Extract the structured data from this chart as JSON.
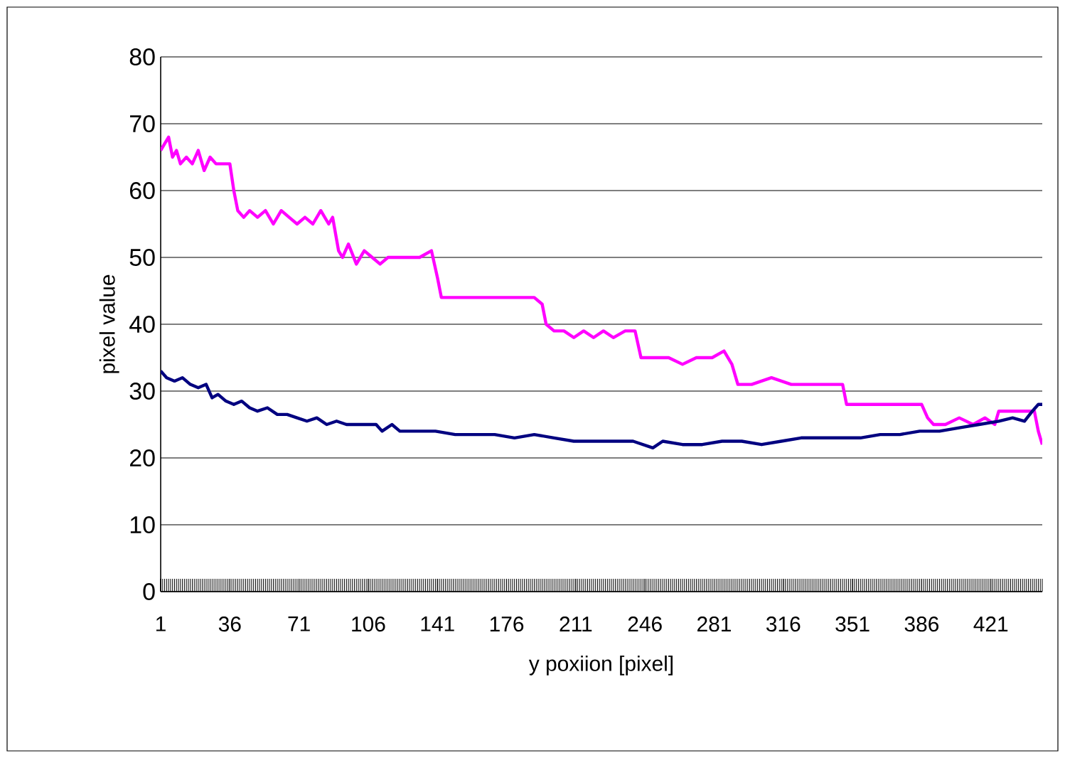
{
  "chart_data": {
    "type": "line",
    "xlabel": "y poxiion [pixel]",
    "ylabel": "pixel value",
    "xlim": [
      1,
      447
    ],
    "xticks": [
      1,
      36,
      71,
      106,
      141,
      176,
      211,
      246,
      281,
      316,
      351,
      386,
      421
    ],
    "ylim": [
      0,
      80
    ],
    "yticks": [
      0,
      10,
      20,
      30,
      40,
      50,
      60,
      70,
      80
    ],
    "grid": "y",
    "marker": "none",
    "line_style": "solid",
    "series": [
      {
        "color": "#ff00ff",
        "x": [
          1,
          3,
          5,
          7,
          9,
          11,
          14,
          17,
          20,
          23,
          26,
          29,
          32,
          36,
          38,
          40,
          43,
          46,
          50,
          54,
          58,
          62,
          66,
          70,
          74,
          78,
          82,
          86,
          88,
          91,
          93,
          96,
          100,
          104,
          108,
          112,
          116,
          120,
          126,
          132,
          138,
          141,
          143,
          150,
          160,
          170,
          180,
          190,
          194,
          196,
          200,
          205,
          210,
          215,
          220,
          225,
          230,
          236,
          241,
          244,
          250,
          258,
          265,
          272,
          280,
          286,
          290,
          293,
          300,
          310,
          320,
          330,
          340,
          346,
          348,
          360,
          370,
          380,
          386,
          389,
          392,
          398,
          405,
          412,
          418,
          423,
          425,
          432,
          440,
          443,
          445,
          447
        ],
        "values": [
          66,
          67,
          68,
          65,
          66,
          64,
          65,
          64,
          66,
          63,
          65,
          64,
          64,
          64,
          60,
          57,
          56,
          57,
          56,
          57,
          55,
          57,
          56,
          55,
          56,
          55,
          57,
          55,
          56,
          51,
          50,
          52,
          49,
          51,
          50,
          49,
          50,
          50,
          50,
          50,
          51,
          47,
          44,
          44,
          44,
          44,
          44,
          44,
          43,
          40,
          39,
          39,
          38,
          39,
          38,
          39,
          38,
          39,
          39,
          35,
          35,
          35,
          34,
          35,
          35,
          36,
          34,
          31,
          31,
          32,
          31,
          31,
          31,
          31,
          28,
          28,
          28,
          28,
          28,
          26,
          25,
          25,
          26,
          25,
          26,
          25,
          27,
          27,
          27,
          27,
          24,
          22
        ]
      },
      {
        "color": "#000080",
        "x": [
          1,
          4,
          8,
          12,
          16,
          20,
          24,
          27,
          30,
          34,
          38,
          42,
          46,
          50,
          55,
          60,
          65,
          70,
          75,
          80,
          85,
          90,
          95,
          100,
          105,
          110,
          113,
          118,
          122,
          130,
          140,
          150,
          160,
          170,
          180,
          190,
          200,
          210,
          220,
          230,
          240,
          250,
          255,
          265,
          275,
          285,
          295,
          305,
          315,
          325,
          335,
          345,
          355,
          365,
          375,
          385,
          395,
          405,
          415,
          425,
          432,
          438,
          442,
          445,
          447
        ],
        "values": [
          33,
          32,
          31.5,
          32,
          31,
          30.5,
          31,
          29,
          29.5,
          28.5,
          28,
          28.5,
          27.5,
          27,
          27.5,
          26.5,
          26.5,
          26,
          25.5,
          26,
          25,
          25.5,
          25,
          25,
          25,
          25,
          24,
          25,
          24,
          24,
          24,
          23.5,
          23.5,
          23.5,
          23,
          23.5,
          23,
          22.5,
          22.5,
          22.5,
          22.5,
          21.5,
          22.5,
          22,
          22,
          22.5,
          22.5,
          22,
          22.5,
          23,
          23,
          23,
          23,
          23.5,
          23.5,
          24,
          24,
          24.5,
          25,
          25.5,
          26,
          25.5,
          27,
          28,
          28
        ]
      }
    ]
  }
}
